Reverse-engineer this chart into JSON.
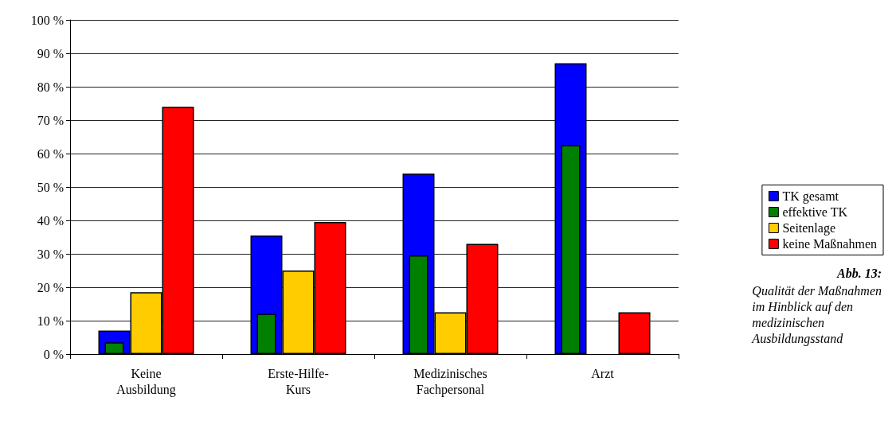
{
  "chart_data": {
    "type": "bar",
    "categories": [
      "Keine\nAusbildung",
      "Erste-Hilfe-\nKurs",
      "Medizinisches\nFachpersonal",
      "Arzt"
    ],
    "series": [
      {
        "name": "TK gesamt",
        "color": "#0000ff",
        "values": [
          7,
          35.5,
          54,
          87
        ]
      },
      {
        "name": "effektive TK",
        "color": "#008000",
        "values": [
          3.5,
          12,
          29.5,
          62.5
        ]
      },
      {
        "name": "Seitenlage",
        "color": "#ffcc00",
        "values": [
          18.5,
          25,
          12.5,
          null
        ]
      },
      {
        "name": "keine Maßnahmen",
        "color": "#ff0000",
        "values": [
          74,
          39.5,
          33,
          12.5
        ]
      }
    ],
    "ylim": [
      0,
      100
    ],
    "yticks": [
      {
        "value": 0,
        "label": "0 %"
      },
      {
        "value": 10,
        "label": "10 %"
      },
      {
        "value": 20,
        "label": "20 %"
      },
      {
        "value": 30,
        "label": "30 %"
      },
      {
        "value": 40,
        "label": "40 %"
      },
      {
        "value": 50,
        "label": "50 %"
      },
      {
        "value": 60,
        "label": "60 %"
      },
      {
        "value": 70,
        "label": "70 %"
      },
      {
        "value": 80,
        "label": "80 %"
      },
      {
        "value": 90,
        "label": "90 %"
      },
      {
        "value": 100,
        "label": "100 %"
      }
    ],
    "grid": "y",
    "legend": "right",
    "annotations": [
      "Abb. 13:",
      "Qualität der Maßnahmen\nim Hinblick auf den\nmedizinischen\nAusbildungsstand"
    ]
  }
}
